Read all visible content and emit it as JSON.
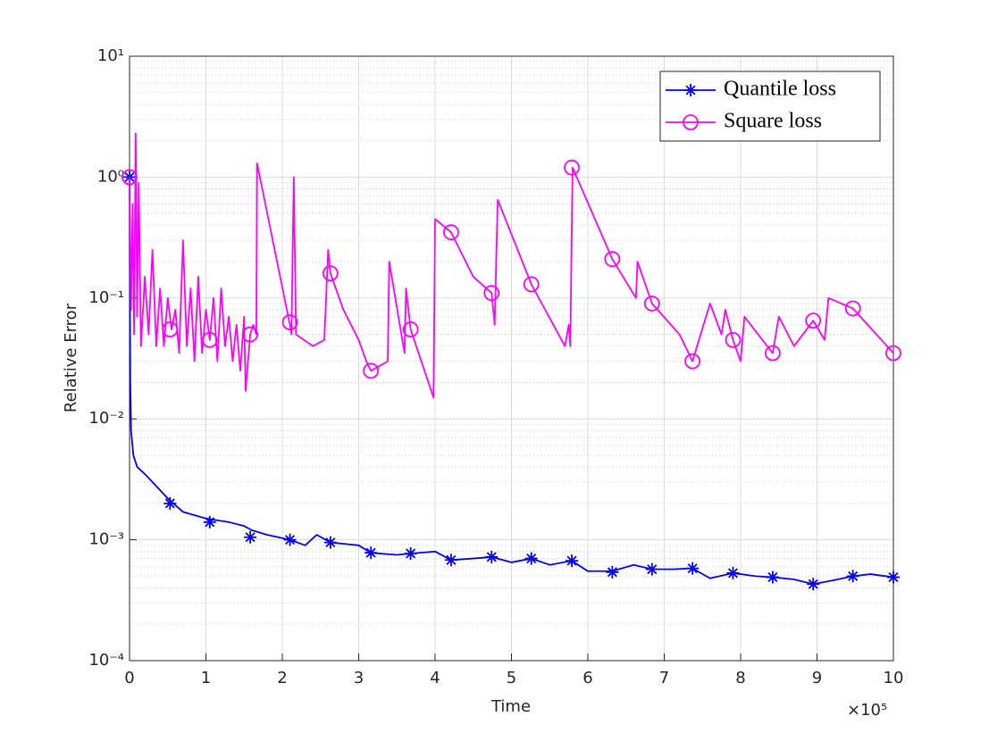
{
  "chart_data": {
    "type": "line",
    "x_label": "Time",
    "y_label": "Relative Error",
    "x_multiplier": "×10⁵",
    "xlim": [
      0,
      1000000
    ],
    "xticks": [
      {
        "value": 0,
        "label": "0"
      },
      {
        "value": 100000,
        "label": "1"
      },
      {
        "value": 200000,
        "label": "2"
      },
      {
        "value": 300000,
        "label": "3"
      },
      {
        "value": 400000,
        "label": "4"
      },
      {
        "value": 500000,
        "label": "5"
      },
      {
        "value": 600000,
        "label": "6"
      },
      {
        "value": 700000,
        "label": "7"
      },
      {
        "value": 800000,
        "label": "8"
      },
      {
        "value": 900000,
        "label": "9"
      },
      {
        "value": 1000000,
        "label": "10"
      }
    ],
    "ylim": [
      0.0001,
      10
    ],
    "y_scale": "log",
    "yticks": [
      {
        "value": 0.0001,
        "label": "10⁻⁴"
      },
      {
        "value": 0.001,
        "label": "10⁻³"
      },
      {
        "value": 0.01,
        "label": "10⁻²"
      },
      {
        "value": 0.1,
        "label": "10⁻¹"
      },
      {
        "value": 1,
        "label": "10⁰"
      },
      {
        "value": 10,
        "label": "10¹"
      }
    ],
    "grid": true,
    "minor_grid": true,
    "legend_position": "top-right",
    "series": [
      {
        "name": "Quantile loss",
        "color": "#0000ff",
        "marker": "asterisk",
        "x": [
          0,
          500,
          1000,
          2000,
          5000,
          10000,
          20000,
          30000,
          50000,
          70000,
          100000,
          130000,
          150000,
          160000,
          180000,
          210000,
          230000,
          245000,
          263000,
          300000,
          316000,
          350000,
          368000,
          400000,
          421000,
          450000,
          474000,
          500000,
          526000,
          550000,
          579000,
          600000,
          632000,
          660000,
          684000,
          710000,
          737000,
          760000,
          790000,
          820000,
          842000,
          870000,
          895000,
          920000,
          947000,
          970000,
          1000000
        ],
        "values": [
          1.0,
          0.1,
          0.02,
          0.008,
          0.005,
          0.004,
          0.0035,
          0.003,
          0.0022,
          0.0017,
          0.0015,
          0.0014,
          0.0013,
          0.0012,
          0.0011,
          0.001,
          0.0009,
          0.0011,
          0.00095,
          0.0009,
          0.00078,
          0.00075,
          0.00077,
          0.0008,
          0.00068,
          0.0007,
          0.00072,
          0.00065,
          0.0007,
          0.00062,
          0.00067,
          0.00055,
          0.00055,
          0.00062,
          0.00057,
          0.00057,
          0.00058,
          0.00048,
          0.00053,
          0.0005,
          0.00049,
          0.00047,
          0.00043,
          0.00046,
          0.0005,
          0.00052,
          0.00049
        ],
        "marker_x": [
          0,
          53000,
          105000,
          158000,
          210000,
          263000,
          316000,
          368000,
          421000,
          474000,
          526000,
          579000,
          632000,
          684000,
          737000,
          790000,
          842000,
          895000,
          947000,
          1000000
        ],
        "marker_values": [
          1.0,
          0.002,
          0.0014,
          0.00105,
          0.001,
          0.00095,
          0.00078,
          0.00077,
          0.00068,
          0.00072,
          0.0007,
          0.00067,
          0.00054,
          0.00057,
          0.00058,
          0.00053,
          0.00049,
          0.00043,
          0.0005,
          0.00049
        ]
      },
      {
        "name": "Square loss",
        "color": "#ff00ff",
        "marker": "circle",
        "x": [
          0,
          2000,
          4000,
          6000,
          8000,
          10000,
          12000,
          15000,
          20000,
          25000,
          30000,
          35000,
          40000,
          45000,
          50000,
          55000,
          60000,
          65000,
          70000,
          75000,
          80000,
          85000,
          90000,
          95000,
          100000,
          105000,
          110000,
          115000,
          120000,
          125000,
          130000,
          135000,
          140000,
          145000,
          150000,
          152000,
          158000,
          162000,
          166000,
          167000,
          190000,
          210000,
          212000,
          215000,
          218000,
          240000,
          255000,
          260000,
          263000,
          280000,
          300000,
          310000,
          316000,
          338000,
          340000,
          360000,
          362000,
          368000,
          398000,
          400000,
          421000,
          450000,
          474000,
          478000,
          482000,
          526000,
          570000,
          575000,
          577000,
          580000,
          632000,
          663000,
          665000,
          684000,
          720000,
          737000,
          760000,
          775000,
          780000,
          790000,
          800000,
          805000,
          842000,
          850000,
          870000,
          895000,
          910000,
          915000,
          947000,
          1000000
        ],
        "values": [
          1.0,
          0.08,
          0.6,
          0.05,
          2.3,
          0.07,
          0.9,
          0.04,
          0.15,
          0.05,
          0.25,
          0.04,
          0.12,
          0.04,
          0.1,
          0.055,
          0.08,
          0.035,
          0.3,
          0.04,
          0.12,
          0.03,
          0.15,
          0.035,
          0.08,
          0.045,
          0.1,
          0.03,
          0.12,
          0.04,
          0.07,
          0.03,
          0.06,
          0.025,
          0.07,
          0.017,
          0.05,
          0.06,
          0.05,
          1.3,
          0.25,
          0.06,
          0.05,
          1.0,
          0.05,
          0.04,
          0.045,
          0.25,
          0.16,
          0.08,
          0.045,
          0.03,
          0.025,
          0.03,
          0.2,
          0.035,
          0.12,
          0.055,
          0.015,
          0.45,
          0.35,
          0.15,
          0.11,
          0.06,
          0.65,
          0.13,
          0.04,
          0.06,
          0.04,
          1.2,
          0.21,
          0.1,
          0.2,
          0.09,
          0.05,
          0.03,
          0.09,
          0.05,
          0.08,
          0.045,
          0.03,
          0.07,
          0.035,
          0.07,
          0.04,
          0.065,
          0.045,
          0.1,
          0.082,
          0.035
        ],
        "marker_x": [
          0,
          53000,
          105000,
          158000,
          210000,
          263000,
          316000,
          368000,
          421000,
          474000,
          526000,
          579000,
          632000,
          684000,
          737000,
          790000,
          842000,
          895000,
          947000,
          1000000
        ],
        "marker_values": [
          1.0,
          0.055,
          0.045,
          0.05,
          0.063,
          0.16,
          0.025,
          0.055,
          0.35,
          0.11,
          0.13,
          1.2,
          0.21,
          0.09,
          0.03,
          0.045,
          0.035,
          0.065,
          0.082,
          0.035
        ]
      }
    ]
  }
}
